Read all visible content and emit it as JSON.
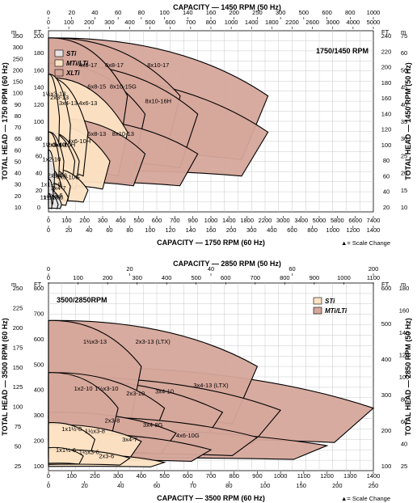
{
  "chart_data": [
    {
      "type": "area",
      "title": "1750/1450 RPM",
      "top_axis_title": "CAPACITY — 1450 RPM (50 Hz)",
      "bottom_axis_title": "CAPACITY — 1750 RPM (60 Hz)",
      "left_axis_title": "TOTAL HEAD — 1750 RPM (60 Hz)",
      "right_axis_title": "TOTAL HEAD — 1450 RPM (50 Hz)",
      "units": {
        "m": "m",
        "ft": "FT.",
        "gpm": "0  GPM",
        "m3h": "0  m³/h"
      },
      "scale_change_note": "▲= Scale Change",
      "top_m3h_ticks": [
        "0",
        "20",
        "40",
        "60",
        "80",
        "100",
        "140",
        "160",
        "200",
        "250",
        "300",
        "500",
        "600",
        "800",
        "1000"
      ],
      "top_gpm_ticks": [
        "0",
        "100",
        "200",
        "300",
        "400",
        "500",
        "600",
        "700",
        "800",
        "1000",
        "1400",
        "1800",
        "2200",
        "2600",
        "3000",
        "4000",
        "5000"
      ],
      "bottom_gpm_ticks": [
        "0",
        "100",
        "200",
        "300",
        "400",
        "500",
        "600",
        "700",
        "900",
        "1000",
        "1400",
        "1800",
        "2200",
        "3000",
        "3400",
        "5000",
        "5800",
        "6600",
        "7400"
      ],
      "bottom_m3h_ticks": [
        "0",
        "20",
        "40",
        "60",
        "80",
        "100",
        "120",
        "140",
        "160",
        "200",
        "300",
        "400",
        "600",
        "800",
        "1000",
        "1200",
        "1400"
      ],
      "left_ft_ticks": [
        "0",
        "20",
        "40",
        "60",
        "80",
        "100",
        "120",
        "140",
        "160",
        "180",
        "200"
      ],
      "left_m_ticks": [
        "10",
        "20",
        "30",
        "40",
        "50",
        "60",
        "65",
        "70",
        "80",
        "90",
        "100",
        "150",
        "200",
        "250",
        "300",
        "350"
      ],
      "right_ft_ticks": [
        "20",
        "40",
        "60",
        "80",
        "100",
        "120",
        "140",
        "160",
        "180",
        "200",
        "220",
        "240"
      ],
      "right_m_ticks": [
        "10",
        "15",
        "20",
        "25",
        "30",
        "35",
        "40",
        "45",
        "50",
        "60",
        "75"
      ],
      "ylim_ft": [
        0,
        250
      ],
      "legend": [
        {
          "label": "STi",
          "color": "#e6e3e3"
        },
        {
          "label": "MTi/LTi",
          "color": "#fde2c3"
        },
        {
          "label": "XLTi",
          "color": "#d6a79b"
        }
      ],
      "pumps": [
        {
          "label": "1x1½-6",
          "series": "STi",
          "capacity_gpm": [
            0,
            80
          ],
          "head_ft": [
            25,
            10
          ]
        },
        {
          "label": "1x1½-8",
          "series": "STi",
          "capacity_gpm": [
            0,
            110
          ],
          "head_ft": [
            45,
            25
          ]
        },
        {
          "label": "1x2-10",
          "series": "STi",
          "capacity_gpm": [
            0,
            140
          ],
          "head_ft": [
            85,
            55
          ]
        },
        {
          "label": "1½x3-6",
          "series": "STi",
          "capacity_gpm": [
            0,
            220
          ],
          "head_ft": [
            25,
            10
          ]
        },
        {
          "label": "2x3-6",
          "series": "STi",
          "capacity_gpm": [
            0,
            300
          ],
          "head_ft": [
            30,
            10
          ]
        },
        {
          "label": "1½x3-13",
          "series": "MTi/LTi",
          "capacity_gpm": [
            0,
            250
          ],
          "head_ft": [
            190,
            130
          ]
        },
        {
          "label": "2x3-13",
          "series": "MTi/LTi",
          "capacity_gpm": [
            0,
            500
          ],
          "head_ft": [
            190,
            120
          ]
        },
        {
          "label": "3x4-13",
          "series": "MTi/LTi",
          "capacity_gpm": [
            0,
            900
          ],
          "head_ft": [
            185,
            110
          ]
        },
        {
          "label": "4x6-13",
          "series": "MTi/LTi",
          "capacity_gpm": [
            0,
            1800
          ],
          "head_ft": [
            185,
            110
          ]
        },
        {
          "label": "1½x3-10",
          "series": "MTi/LTi",
          "capacity_gpm": [
            0,
            250
          ],
          "head_ft": [
            110,
            70
          ]
        },
        {
          "label": "2x3-10",
          "series": "MTi/LTi",
          "capacity_gpm": [
            0,
            350
          ],
          "head_ft": [
            110,
            70
          ]
        },
        {
          "label": "3x4-10",
          "series": "MTi/LTi",
          "capacity_gpm": [
            0,
            600
          ],
          "head_ft": [
            110,
            70
          ]
        },
        {
          "label": "3x4-10H",
          "series": "MTi/LTi",
          "capacity_gpm": [
            0,
            700
          ],
          "head_ft": [
            110,
            70
          ]
        },
        {
          "label": "4x6-10H",
          "series": "MTi/LTi",
          "capacity_gpm": [
            0,
            1400
          ],
          "head_ft": [
            120,
            70
          ]
        },
        {
          "label": "2x3-8",
          "series": "MTi/LTi",
          "capacity_gpm": [
            0,
            300
          ],
          "head_ft": [
            60,
            35
          ]
        },
        {
          "label": "3x4-8",
          "series": "MTi/LTi",
          "capacity_gpm": [
            0,
            500
          ],
          "head_ft": [
            60,
            35
          ]
        },
        {
          "label": "3x4-7",
          "series": "MTi/LTi",
          "capacity_gpm": [
            0,
            450
          ],
          "head_ft": [
            40,
            20
          ]
        },
        {
          "label": "4x6-10G",
          "series": "MTi/LTi",
          "capacity_gpm": [
            0,
            900
          ],
          "head_ft": [
            60,
            30
          ]
        },
        {
          "label": "4x6-17",
          "series": "XLTi",
          "capacity_gpm": [
            0,
            1800
          ],
          "head_ft": [
            240,
            160
          ]
        },
        {
          "label": "6x8-17",
          "series": "XLTi",
          "capacity_gpm": [
            0,
            3000
          ],
          "head_ft": [
            240,
            160
          ]
        },
        {
          "label": "6x8-15",
          "series": "XLTi",
          "capacity_gpm": [
            0,
            2200
          ],
          "head_ft": [
            205,
            135
          ]
        },
        {
          "label": "8x10-15G",
          "series": "XLTi",
          "capacity_gpm": [
            0,
            3400
          ],
          "head_ft": [
            205,
            135
          ]
        },
        {
          "label": "8x10-17",
          "series": "XLTi",
          "capacity_gpm": [
            0,
            5000
          ],
          "head_ft": [
            240,
            160
          ]
        },
        {
          "label": "6x8-13",
          "series": "XLTi",
          "capacity_gpm": [
            0,
            2200
          ],
          "head_ft": [
            130,
            80
          ]
        },
        {
          "label": "8x10-13",
          "series": "XLTi",
          "capacity_gpm": [
            0,
            3400
          ],
          "head_ft": [
            130,
            80
          ]
        },
        {
          "label": "8x10-16H",
          "series": "XLTi",
          "capacity_gpm": [
            0,
            5000
          ],
          "head_ft": [
            190,
            110
          ]
        }
      ]
    },
    {
      "type": "area",
      "title": "3500/2850RPM",
      "top_axis_title": "CAPACITY — 2850 RPM (50 Hz)",
      "bottom_axis_title": "CAPACITY — 3500 RPM (60 Hz)",
      "left_axis_title": "TOTAL HEAD — 3500 RPM (60 Hz)",
      "right_axis_title": "TOTAL HEAD — 2850 RPM (50 Hz)",
      "units": {
        "m": "m",
        "ft": "FT.",
        "gpm": "0  GPM",
        "m3h": "0  m³/h"
      },
      "scale_change_note": "▲= Scale Change",
      "top_m3h_ticks": [
        "0",
        "20",
        "40",
        "60",
        "200"
      ],
      "top_gpm_ticks": [
        "0",
        "100",
        "200",
        "300",
        "400",
        "500",
        "600",
        "700",
        "800",
        "900",
        "1000",
        "1100"
      ],
      "bottom_gpm_ticks": [
        "0",
        "100",
        "200",
        "300",
        "400",
        "500",
        "600",
        "700",
        "800",
        "900",
        "1000",
        "1100",
        "1200",
        "1300",
        "1400"
      ],
      "bottom_m3h_ticks": [
        "0",
        "20",
        "40",
        "60",
        "70",
        "80",
        "100",
        "150",
        "200",
        "250"
      ],
      "left_ft_ticks": [
        "100",
        "200",
        "300",
        "400",
        "500",
        "600",
        "700",
        "800"
      ],
      "left_m_ticks": [
        "25",
        "50",
        "75",
        "100",
        "125",
        "150",
        "175",
        "200",
        "225",
        "250"
      ],
      "right_ft_ticks": [
        "100",
        "200",
        "300",
        "400",
        "500",
        "600"
      ],
      "right_m_ticks": [
        "25",
        "40",
        "60",
        "80",
        "100",
        "120",
        "140",
        "160",
        "180"
      ],
      "ylim_ft": [
        0,
        900
      ],
      "legend": [
        {
          "label": "STi",
          "color": "#fde2c3"
        },
        {
          "label": "MTi/LTi",
          "color": "#d6a79b"
        }
      ],
      "pumps": [
        {
          "label": "1x1½-6",
          "series": "STi",
          "capacity_gpm": [
            0,
            150
          ],
          "head_ft": [
            110,
            70
          ]
        },
        {
          "label": "1x1½-8",
          "series": "STi",
          "capacity_gpm": [
            0,
            200
          ],
          "head_ft": [
            230,
            150
          ]
        },
        {
          "label": "1½x3-6",
          "series": "STi",
          "capacity_gpm": [
            0,
            350
          ],
          "head_ft": [
            100,
            60
          ]
        },
        {
          "label": "1½x3-8",
          "series": "STi",
          "capacity_gpm": [
            0,
            400
          ],
          "head_ft": [
            220,
            140
          ]
        },
        {
          "label": "2x3-6",
          "series": "STi",
          "capacity_gpm": [
            0,
            500
          ],
          "head_ft": [
            80,
            40
          ]
        },
        {
          "label": "1½x3-13",
          "series": "MTi/LTi",
          "capacity_gpm": [
            0,
            400
          ],
          "head_ft": [
            720,
            500
          ]
        },
        {
          "label": "2x3-13 (LTX)",
          "series": "MTi/LTi",
          "capacity_gpm": [
            0,
            900
          ],
          "head_ft": [
            720,
            500
          ]
        },
        {
          "label": "1x2-10",
          "series": "MTi/LTi",
          "capacity_gpm": [
            0,
            300
          ],
          "head_ft": [
            470,
            300
          ]
        },
        {
          "label": "1½x3-10",
          "series": "MTi/LTi",
          "capacity_gpm": [
            0,
            500
          ],
          "head_ft": [
            470,
            300
          ]
        },
        {
          "label": "2x3-8",
          "series": "MTi/LTi",
          "capacity_gpm": [
            0,
            550
          ],
          "head_ft": [
            280,
            180
          ]
        },
        {
          "label": "2x3-10",
          "series": "MTi/LTi",
          "capacity_gpm": [
            0,
            750
          ],
          "head_ft": [
            440,
            280
          ]
        },
        {
          "label": "3x4-10",
          "series": "MTi/LTi",
          "capacity_gpm": [
            0,
            1000
          ],
          "head_ft": [
            450,
            290
          ]
        },
        {
          "label": "3x4-13 (LTX)",
          "series": "MTi/LTi",
          "capacity_gpm": [
            0,
            1400
          ],
          "head_ft": [
            500,
            300
          ]
        },
        {
          "label": "3x4-7",
          "series": "MTi/LTi",
          "capacity_gpm": [
            0,
            700
          ],
          "head_ft": [
            180,
            100
          ]
        },
        {
          "label": "3x4-8G",
          "series": "MTi/LTi",
          "capacity_gpm": [
            0,
            900
          ],
          "head_ft": [
            260,
            160
          ]
        },
        {
          "label": "4x6-10G",
          "series": "MTi/LTi",
          "capacity_gpm": [
            0,
            1200
          ],
          "head_ft": [
            200,
            120
          ]
        }
      ]
    }
  ]
}
